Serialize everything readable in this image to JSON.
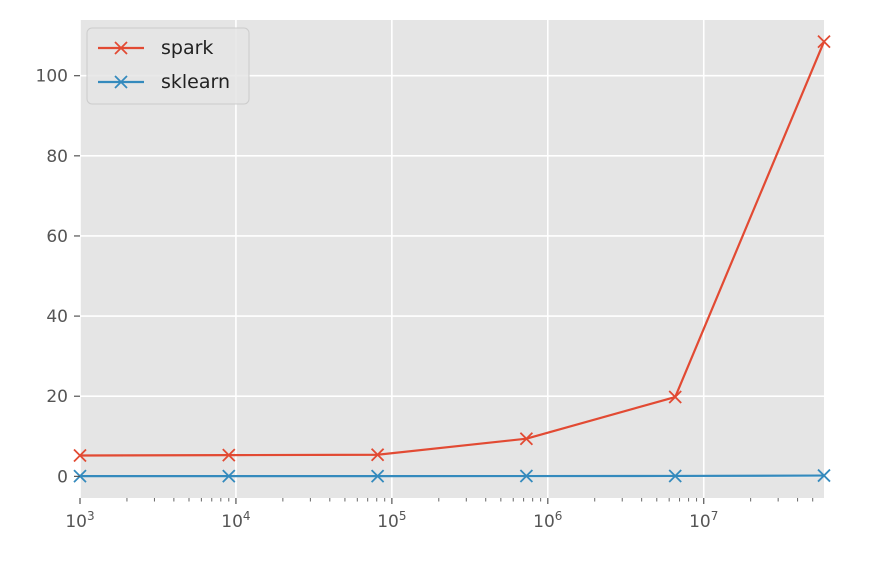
{
  "chart_data": {
    "type": "line",
    "x_scale": "log",
    "x": [
      1000,
      9000,
      81000,
      729000,
      6561000,
      59049000
    ],
    "series": [
      {
        "name": "spark",
        "color": "#E24A33",
        "marker": "x",
        "values": [
          5.2,
          5.3,
          5.4,
          9.4,
          19.8,
          108.5
        ]
      },
      {
        "name": "sklearn",
        "color": "#348ABD",
        "marker": "x",
        "values": [
          0.05,
          0.05,
          0.06,
          0.08,
          0.1,
          0.2
        ]
      }
    ],
    "xlim": [
      1000,
      59049000
    ],
    "ylim": [
      -5.4,
      113.9
    ],
    "x_ticks": [
      {
        "value": 1000,
        "label_base": "10",
        "label_exp": "3"
      },
      {
        "value": 10000,
        "label_base": "10",
        "label_exp": "4"
      },
      {
        "value": 100000,
        "label_base": "10",
        "label_exp": "5"
      },
      {
        "value": 1000000,
        "label_base": "10",
        "label_exp": "6"
      },
      {
        "value": 10000000,
        "label_base": "10",
        "label_exp": "7"
      }
    ],
    "y_ticks": [
      0,
      20,
      40,
      60,
      80,
      100
    ],
    "grid": true,
    "legend_position": "upper left",
    "title": "",
    "xlabel": "",
    "ylabel": ""
  },
  "style": {
    "plot_background": "#E5E5E5",
    "grid_color": "#FFFFFF",
    "tick_color": "#555555"
  }
}
